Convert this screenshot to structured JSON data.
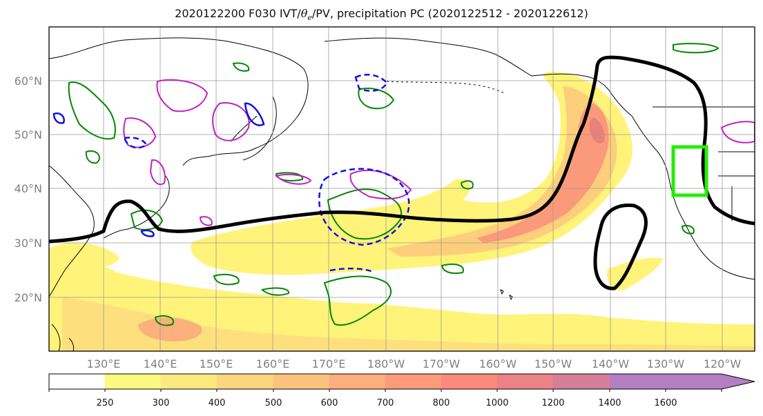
{
  "title": {
    "prefix": "2020122200 F030 IVT/",
    "theta": "θ",
    "theta_sub": "e",
    "suffix": "/PV, precipitation PC (2020122512 - 2020122612)"
  },
  "map": {
    "projection": "cylindrical",
    "grid": true,
    "lat_ticks": [
      "60°N",
      "50°N",
      "40°N",
      "30°N",
      "20°N"
    ],
    "lon_ticks": [
      "130°E",
      "140°E",
      "150°E",
      "160°E",
      "170°E",
      "180°W",
      "170°W",
      "160°W",
      "150°W",
      "140°W",
      "130°W",
      "120°W"
    ]
  },
  "colorbar": {
    "ticks": [
      "250",
      "300",
      "400",
      "500",
      "600",
      "700",
      "800",
      "1000",
      "1200",
      "1400",
      "1600"
    ],
    "colors": [
      "#ffffff",
      "#fdf87e",
      "#fde97d",
      "#fdd57c",
      "#fdc27e",
      "#fdae7d",
      "#fd9a7b",
      "#fb8a7a",
      "#eb8285",
      "#d47f9a",
      "#b37fc2"
    ]
  },
  "colors": {
    "ivt_fill": "#ffd670",
    "contour_theta": "#000000",
    "contour_pv_magenta": "#c020c0",
    "contour_pv_green": "#008800",
    "contour_blue": "#1010e0",
    "box": "#22ee00"
  }
}
